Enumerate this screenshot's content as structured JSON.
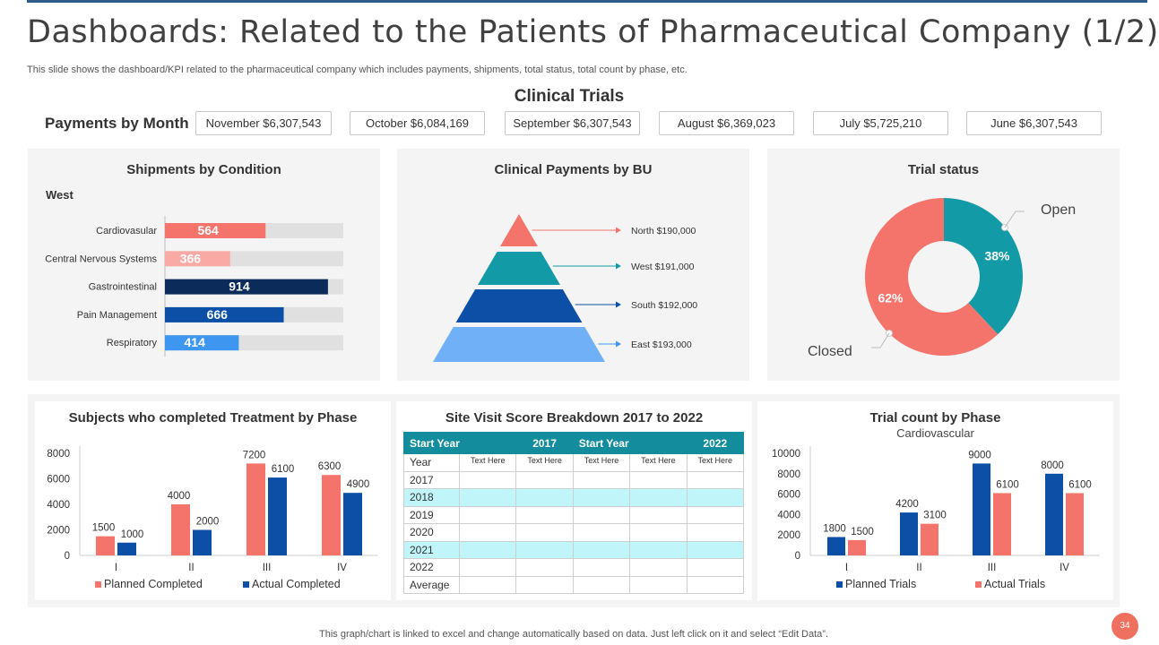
{
  "header": {
    "title": "Dashboards: Related to the Patients of Pharmaceutical Company (1/2)",
    "subtitle": "This slide shows the dashboard/KPI related to the pharmaceutical company which includes payments, shipments, total status, total count by phase, etc."
  },
  "section_title": "Clinical Trials",
  "payments": {
    "label": "Payments by Month",
    "months": [
      {
        "text": "November  $6,307,543"
      },
      {
        "text": "October $6,084,169"
      },
      {
        "text": "September $6,307,543"
      },
      {
        "text": "August $6,369,023"
      },
      {
        "text": "July $5,725,210"
      },
      {
        "text": "June $6,307,543"
      }
    ]
  },
  "site_visit": {
    "title": "Site Visit Score Breakdown 2017 to 2022",
    "headers": [
      "Start Year",
      "2017",
      "Start Year",
      "2022"
    ],
    "rows": [
      {
        "label": "Year",
        "cells": [
          "Text Here",
          "Text Here",
          "Text Here",
          "Text Here",
          "Text Here"
        ]
      },
      {
        "label": "2017",
        "cells": [
          "",
          "",
          "",
          "",
          ""
        ]
      },
      {
        "label": "2018",
        "cells": [
          "",
          "",
          "",
          "",
          ""
        ]
      },
      {
        "label": "2019",
        "cells": [
          "",
          "",
          "",
          "",
          ""
        ]
      },
      {
        "label": "2020",
        "cells": [
          "",
          "",
          "",
          "",
          ""
        ]
      },
      {
        "label": "2021",
        "cells": [
          "",
          "",
          "",
          "",
          ""
        ]
      },
      {
        "label": "2022",
        "cells": [
          "",
          "",
          "",
          "",
          ""
        ]
      },
      {
        "label": "Average",
        "cells": [
          "",
          "",
          "",
          "",
          ""
        ]
      }
    ]
  },
  "colors": {
    "salmon": "#f4736b",
    "light_salmon": "#f9aaa4",
    "navy": "#0b2b5a",
    "blue": "#0b4fa6",
    "light_blue": "#3d97f0",
    "teal": "#129aa6",
    "gray_track": "#e0e0e0"
  },
  "footer": "This graph/chart is linked to excel and change automatically based on data. Just left click on it and select “Edit Data”.",
  "page_number": "34",
  "chart_data": [
    {
      "id": "shipments",
      "type": "bar",
      "orientation": "horizontal",
      "title": "Shipments by Condition",
      "subtitle": "West",
      "categories": [
        "Cardiovasular",
        "Central Nervous Systems",
        "Gastrointestinal",
        "Pain Management",
        "Respiratory"
      ],
      "values": [
        564,
        366,
        914,
        666,
        414
      ],
      "labels": [
        "564",
        "366",
        "914",
        "666",
        "414"
      ],
      "colors": [
        "#f4736b",
        "#f9aaa4",
        "#0b2b5a",
        "#0b4fa6",
        "#3d97f0"
      ],
      "xlim": [
        0,
        1000
      ]
    },
    {
      "id": "bu",
      "type": "pyramid",
      "title": "Clinical Payments by BU",
      "categories": [
        "North",
        "West",
        "South",
        "East"
      ],
      "labels": [
        "North $190,000",
        "West $191,000",
        "South $192,000",
        "East $193,000"
      ],
      "values": [
        190000,
        191000,
        192000,
        193000
      ],
      "colors": [
        "#f4736b",
        "#129aa6",
        "#0b4fa6",
        "#6fb0f7"
      ]
    },
    {
      "id": "trial_status",
      "type": "pie",
      "title": "Trial status",
      "categories": [
        "Open",
        "Closed"
      ],
      "values": [
        38,
        62
      ],
      "labels": [
        "38%",
        "62%"
      ],
      "colors": [
        "#129aa6",
        "#f4736b"
      ]
    },
    {
      "id": "subjects",
      "type": "bar",
      "title": "Subjects who completed Treatment by Phase",
      "categories": [
        "I",
        "II",
        "III",
        "IV"
      ],
      "series": [
        {
          "name": "Planned Completed",
          "values": [
            1500,
            4000,
            7200,
            6300
          ],
          "labels": [
            "1500",
            "4000",
            "7200",
            "6300"
          ],
          "color": "#f4736b"
        },
        {
          "name": "Actual Completed",
          "values": [
            1000,
            2000,
            6100,
            4900
          ],
          "labels": [
            "1000",
            "2000",
            "6100",
            "4900"
          ],
          "color": "#0b4fa6"
        }
      ],
      "ylim": [
        0,
        8000
      ],
      "yticks": [
        "0",
        "2000",
        "4000",
        "6000",
        "8000"
      ]
    },
    {
      "id": "trial_count",
      "type": "bar",
      "title": "Trial count by Phase",
      "subtitle": "Cardiovascular",
      "categories": [
        "I",
        "II",
        "III",
        "IV"
      ],
      "series": [
        {
          "name": "Planned Trials",
          "values": [
            1800,
            4200,
            9000,
            8000
          ],
          "labels": [
            "1800",
            "4200",
            "9000",
            "8000"
          ],
          "color": "#0b4fa6"
        },
        {
          "name": "Actual Trials",
          "values": [
            1500,
            3100,
            6100,
            6100
          ],
          "labels": [
            "1500",
            "3100",
            "6100",
            "6100"
          ],
          "color": "#f4736b"
        }
      ],
      "ylim": [
        0,
        10000
      ],
      "yticks": [
        "0",
        "2000",
        "4000",
        "6000",
        "8000",
        "10000"
      ]
    }
  ]
}
